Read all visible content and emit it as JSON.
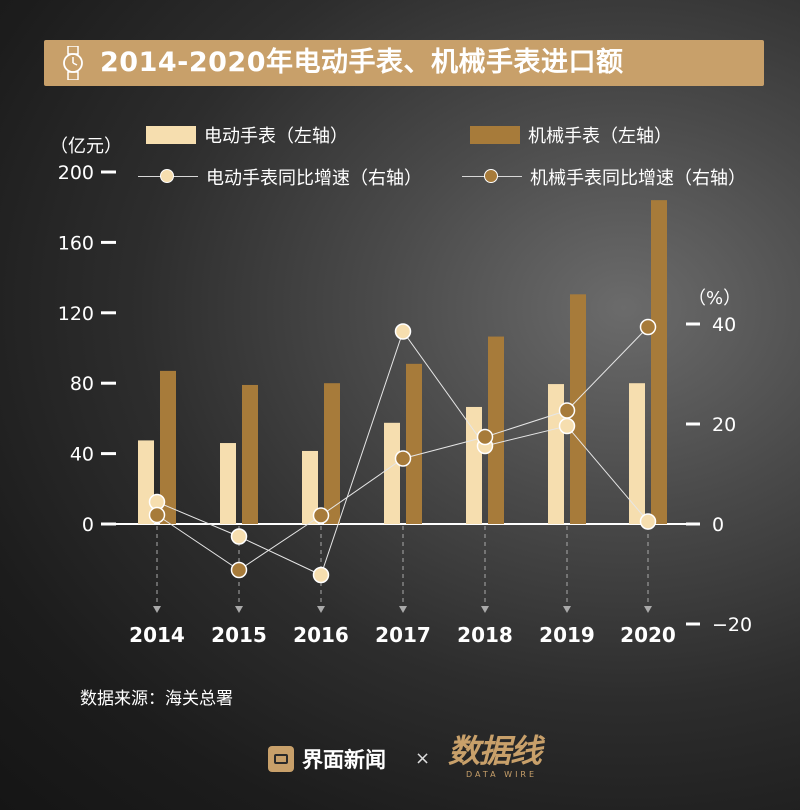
{
  "title": "2014-2020年电动手表、机械手表进口额",
  "legend": {
    "electric_bar": "电动手表（左轴）",
    "mechanical_bar": "机械手表（左轴）",
    "electric_line": "电动手表同比增速（右轴）",
    "mechanical_line": "机械手表同比增速（右轴）"
  },
  "units": {
    "left": "（亿元）",
    "right": "（%）"
  },
  "source": "数据来源：海关总署",
  "footer": {
    "brand1": "界面新闻",
    "separator": "×",
    "brand2": "数据线",
    "brand2_sub": "DATA WIRE"
  },
  "colors": {
    "electric": "#f6deaf",
    "mechanical": "#a77b3a",
    "electric_dot": "#f6deaf",
    "mechanical_dot": "#a77b3a",
    "title_bg": "#c8a06a"
  },
  "chart_data": {
    "type": "bar",
    "categories": [
      "2014",
      "2015",
      "2016",
      "2017",
      "2018",
      "2019",
      "2020"
    ],
    "left_axis": {
      "ylim": [
        0,
        200
      ],
      "ticks": [
        0,
        40,
        80,
        120,
        160,
        200
      ]
    },
    "right_axis": {
      "ylim": [
        -20,
        40
      ],
      "ticks": [
        -20,
        0,
        20,
        40
      ]
    },
    "series": [
      {
        "name": "电动手表（左轴）",
        "type": "bar",
        "axis": "left",
        "values": [
          47.5,
          46,
          41.5,
          57.5,
          66.5,
          79.5,
          80
        ]
      },
      {
        "name": "机械手表（左轴）",
        "type": "bar",
        "axis": "left",
        "values": [
          87,
          79,
          80,
          91,
          106.5,
          130.5,
          184
        ]
      },
      {
        "name": "电动手表同比增速（右轴）",
        "type": "line",
        "axis": "right",
        "values": [
          4.4,
          -2.5,
          -10.2,
          38.5,
          15.6,
          19.6,
          0.5
        ]
      },
      {
        "name": "机械手表同比增速（右轴）",
        "type": "line",
        "axis": "right",
        "values": [
          1.8,
          -9.2,
          1.7,
          13.1,
          17.4,
          22.7,
          39.4
        ]
      }
    ]
  }
}
